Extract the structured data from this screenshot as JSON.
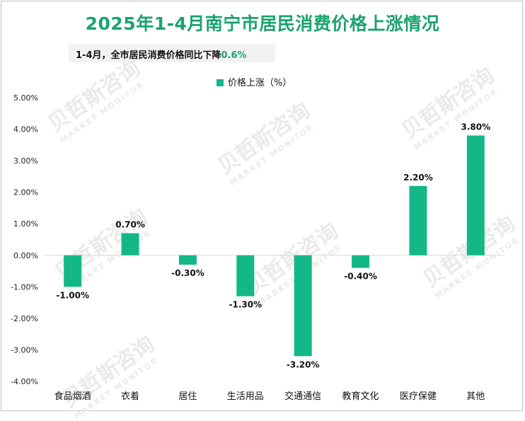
{
  "chart_data": {
    "type": "bar",
    "title": "2025年1-4月南宁市居民消费价格上涨情况",
    "annotation": {
      "text": "1-4月，全市居民消费价格同比下降",
      "highlight": "0.6%"
    },
    "legend": [
      "价格上涨（%）"
    ],
    "categories": [
      "食品烟酒",
      "衣着",
      "居住",
      "生活用品",
      "交通通信",
      "教育文化",
      "医疗保健",
      "其他"
    ],
    "series": [
      {
        "name": "价格上涨（%）",
        "values": [
          -1.0,
          0.7,
          -0.3,
          -1.3,
          -3.2,
          -0.4,
          2.2,
          3.8
        ]
      }
    ],
    "data_labels": [
      "-1.00%",
      "0.70%",
      "-0.30%",
      "-1.30%",
      "-3.20%",
      "-0.40%",
      "2.20%",
      "3.80%"
    ],
    "y_ticks": [
      "5.00%",
      "4.00%",
      "3.00%",
      "2.00%",
      "1.00%",
      "0.00%",
      "-1.00%",
      "-2.00%",
      "-3.00%",
      "-4.00%"
    ],
    "ylim": [
      -4,
      5
    ],
    "color": "#14b886",
    "accent": "#1aa36e"
  },
  "watermark": {
    "cn": "贝哲斯咨询",
    "en": "MARKET MONITOR"
  }
}
